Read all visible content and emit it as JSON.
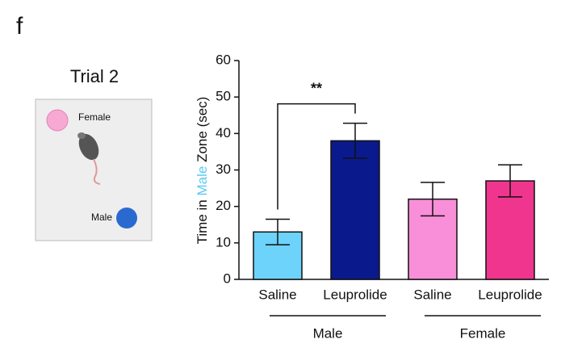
{
  "panel_label": "f",
  "inset": {
    "title": "Trial 2",
    "female_label": "Female",
    "male_label": "Male"
  },
  "chart_data": {
    "type": "bar",
    "ylabel": [
      "Time in",
      "Male",
      "Zone (sec)"
    ],
    "ylabel_highlight_color": "#5bc8f0",
    "categories": [
      "Saline",
      "Leuprolide",
      "Saline",
      "Leuprolide"
    ],
    "groups": [
      "Male",
      "Female"
    ],
    "values": [
      13,
      38,
      22,
      27
    ],
    "errors": [
      3.5,
      4.8,
      4.6,
      4.4
    ],
    "colors": [
      "#6dd3fb",
      "#0a1a8c",
      "#f98fd8",
      "#f0358f"
    ],
    "annotation": "**",
    "ylim": [
      0,
      60
    ],
    "yticks": [
      0,
      10,
      20,
      30,
      40,
      50,
      60
    ]
  }
}
